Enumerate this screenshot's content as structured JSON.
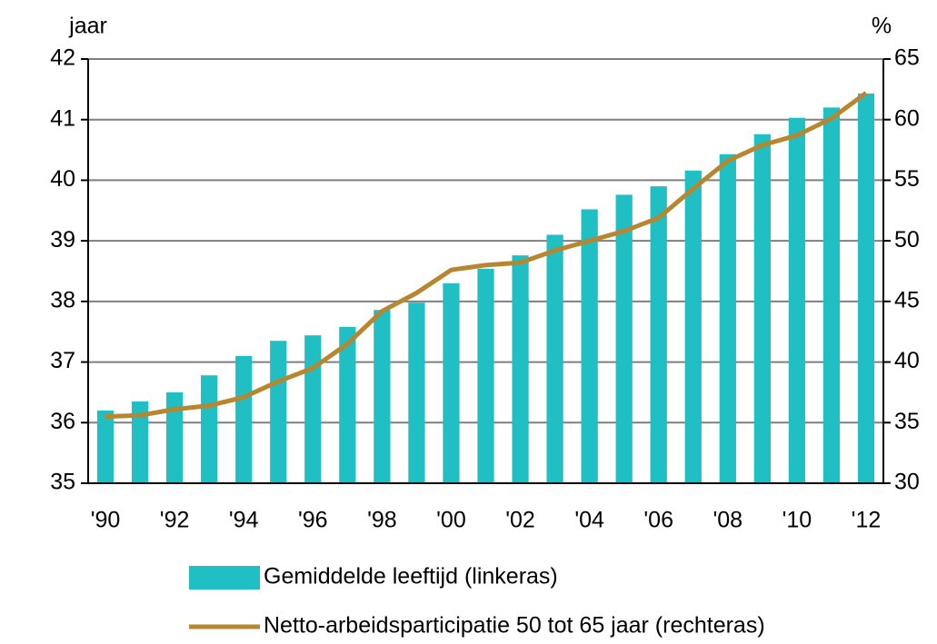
{
  "chart_data": {
    "type": "bar_line",
    "y_label": "jaar",
    "y2_label": "%",
    "categories": [
      "'90",
      null,
      "'92",
      null,
      "'94",
      null,
      "'96",
      null,
      "'98",
      null,
      "'00",
      null,
      "'02",
      null,
      "'04",
      null,
      "'06",
      null,
      "'08",
      null,
      "'10",
      null,
      "'12"
    ],
    "series": [
      {
        "name": "Gemiddelde leeftijd (linkeras)",
        "color": "#1fbfc4",
        "kind": "bar",
        "values": [
          36.2,
          36.35,
          36.5,
          36.78,
          37.1,
          37.35,
          37.44,
          37.58,
          37.86,
          37.98,
          38.3,
          38.54,
          38.76,
          39.1,
          39.52,
          39.76,
          39.9,
          40.16,
          40.43,
          40.76,
          41.03,
          41.2,
          41.43
        ]
      },
      {
        "name": "Netto-arbeidsparticipatie 50 tot 65 jaar (rechteras)",
        "color": "#b8862e",
        "kind": "line",
        "axis": "y2",
        "values": [
          35.5,
          35.6,
          36.1,
          36.4,
          37.1,
          38.4,
          39.5,
          41.5,
          44.2,
          45.7,
          47.6,
          48.0,
          48.2,
          49.2,
          50.0,
          50.8,
          51.9,
          54.3,
          56.6,
          57.9,
          58.7,
          60.1,
          62.2
        ]
      }
    ],
    "ylim": [
      35,
      42
    ],
    "yticks": [
      35,
      36,
      37,
      38,
      39,
      40,
      41,
      42
    ],
    "y2lim": [
      30,
      65
    ],
    "y2ticks": [
      30,
      35,
      40,
      45,
      50,
      55,
      60,
      65
    ],
    "grid": true
  }
}
